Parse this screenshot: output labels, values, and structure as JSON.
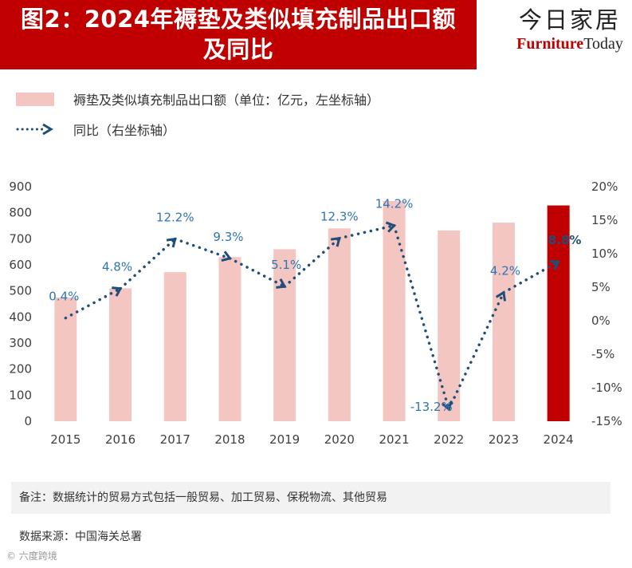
{
  "header": {
    "title_line1": "图2：2024年褥垫及类似填充制品出口额",
    "title_line2": "及同比",
    "brand_cn": "今日家居",
    "brand_en_1": "Furniture",
    "brand_en_2": "Today"
  },
  "chart_data": {
    "type": "bar",
    "categories": [
      "2015",
      "2016",
      "2017",
      "2018",
      "2019",
      "2020",
      "2021",
      "2022",
      "2023",
      "2024"
    ],
    "series": [
      {
        "name": "褥垫及类似填充制品出口额（单位：亿元，左坐标轴）",
        "type": "bar",
        "axis": "left",
        "values": [
          475,
          510,
          572,
          630,
          660,
          740,
          845,
          732,
          762,
          828
        ],
        "color": "#f4c6c1",
        "highlight_color": "#c00000",
        "highlight_index": 9
      },
      {
        "name": "同比（右坐标轴）",
        "type": "line",
        "axis": "right",
        "values": [
          0.4,
          4.8,
          12.2,
          9.3,
          5.1,
          12.3,
          14.2,
          -13.2,
          4.2,
          8.8
        ],
        "labels": [
          "0.4%",
          "4.8%",
          "12.2%",
          "9.3%",
          "5.1%",
          "12.3%",
          "14.2%",
          "-13.2%",
          "4.2%",
          "8.8%"
        ],
        "color": "#1f4e79"
      }
    ],
    "y_left": {
      "ylim": [
        0,
        900
      ],
      "ticks": [
        "0",
        "100",
        "200",
        "300",
        "400",
        "500",
        "600",
        "700",
        "800",
        "900"
      ]
    },
    "y_right": {
      "ylim": [
        -15,
        20
      ],
      "ticks": [
        "-15%",
        "-10%",
        "-5%",
        "0%",
        "5%",
        "10%",
        "15%",
        "20%"
      ]
    },
    "legend_position": "top-left",
    "grid": false
  },
  "footer": {
    "note": "备注：数据统计的贸易方式包括一般贸易、加工贸易、保税物流、其他贸易",
    "source": "数据来源：中国海关总署",
    "watermark": "© 六度跨境"
  }
}
